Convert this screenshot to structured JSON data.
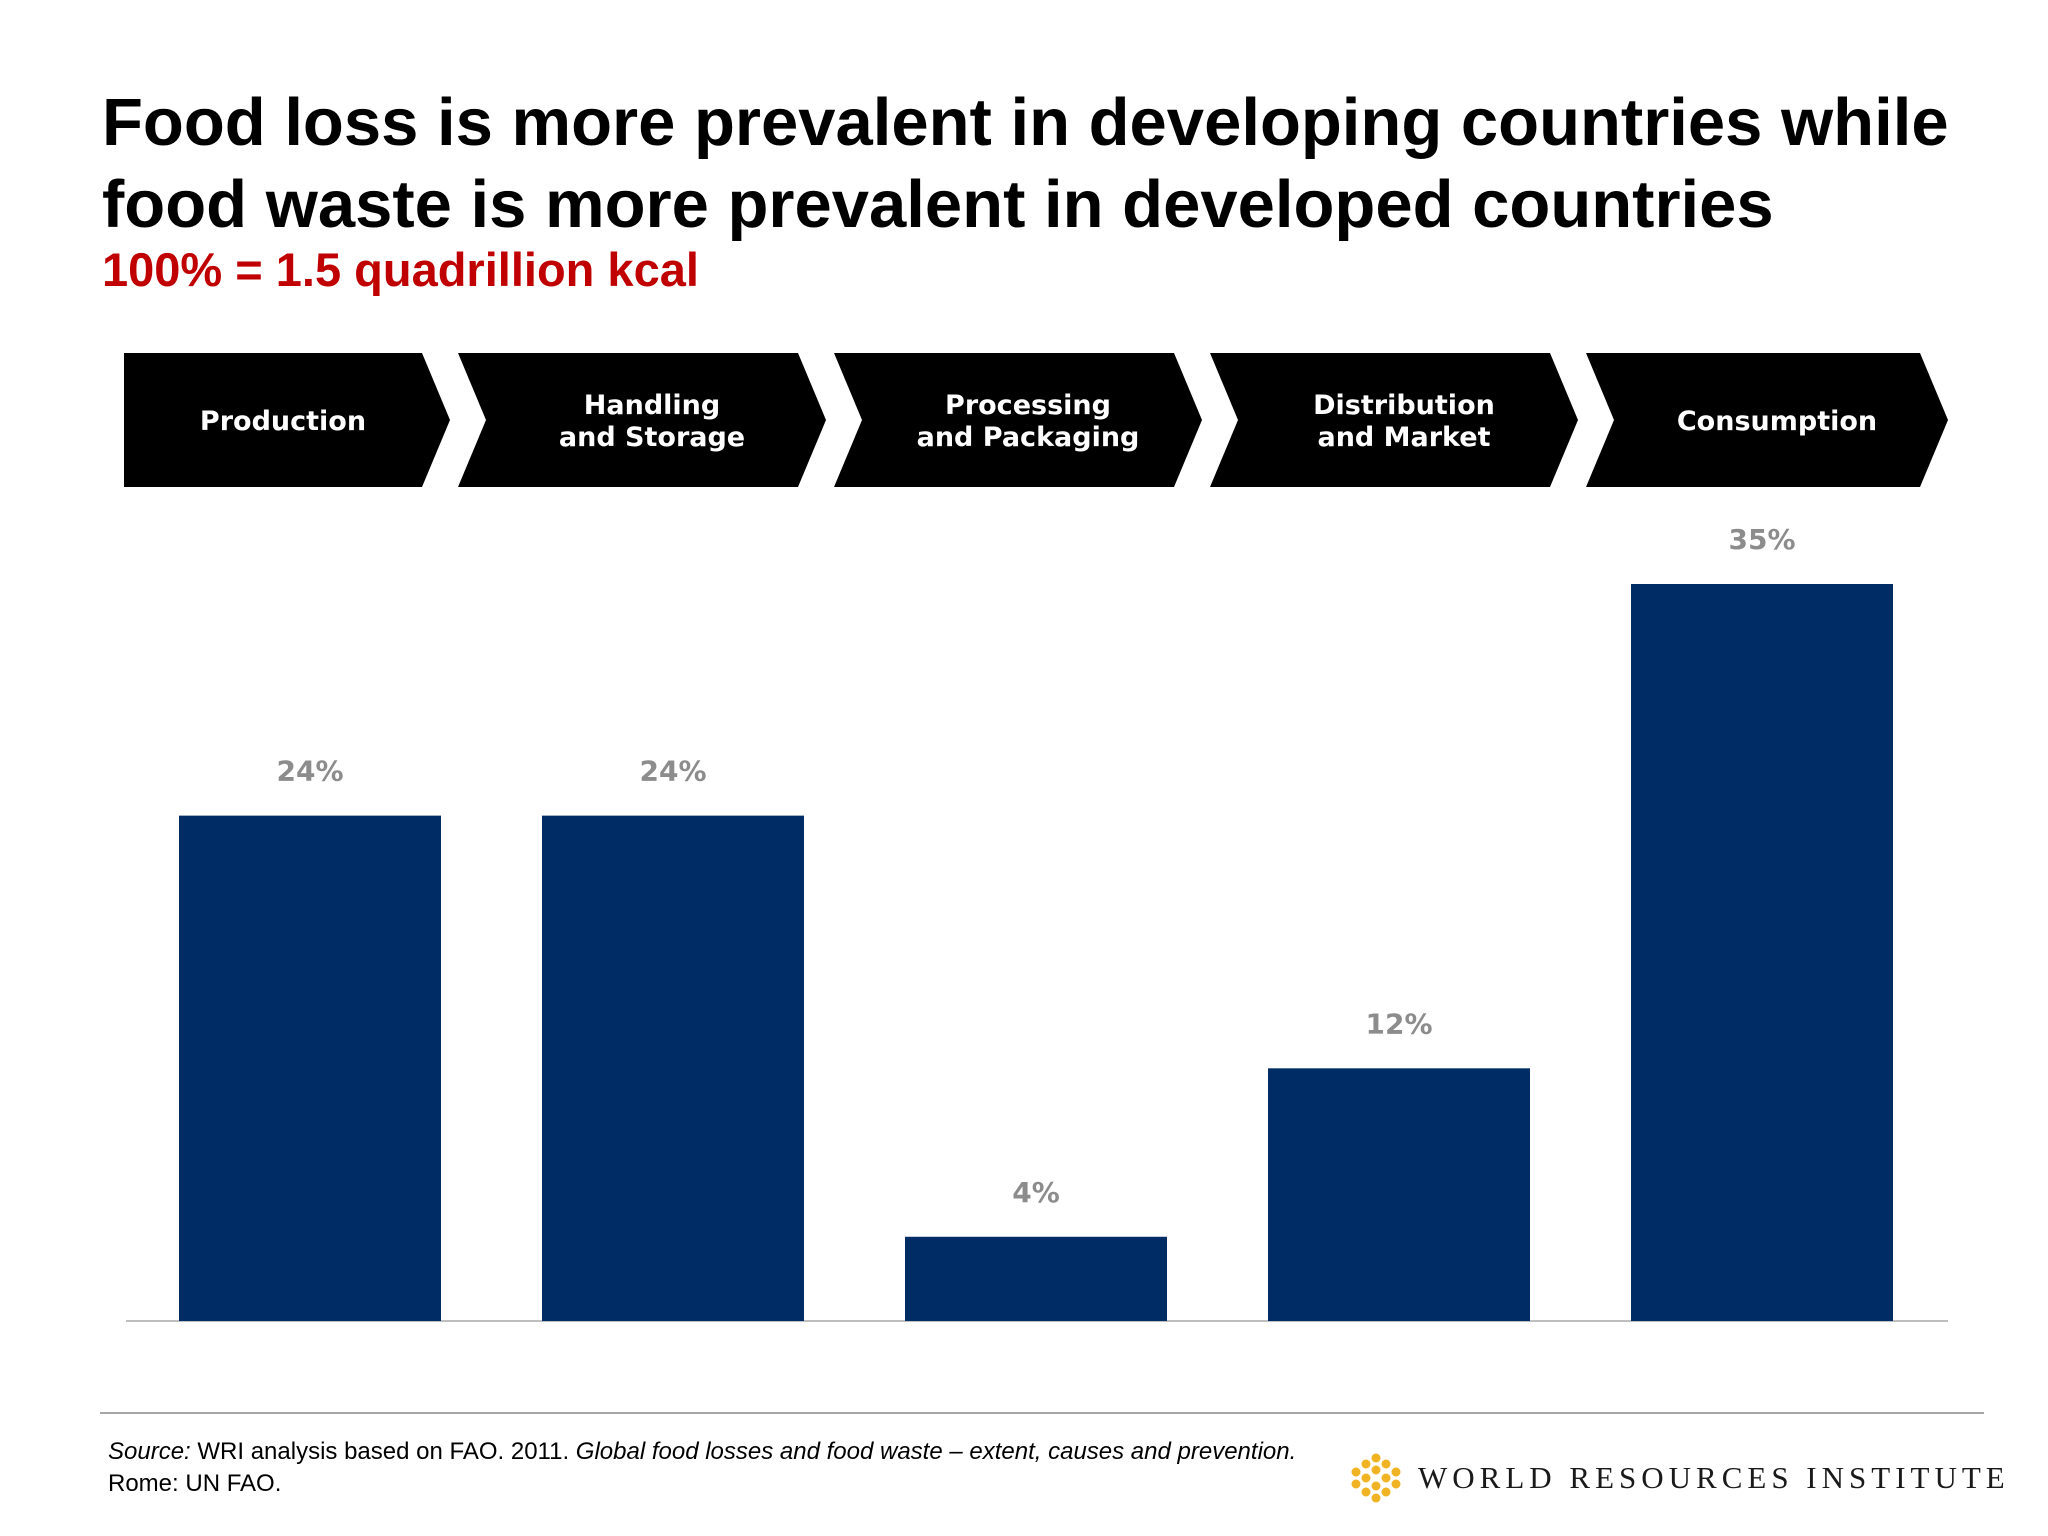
{
  "title_line1": "Food loss is more prevalent in developing countries while",
  "title_line2": "food waste is more prevalent in developed countries",
  "subtitle": "100% = 1.5 quadrillion kcal",
  "colors": {
    "bar": "#002c66",
    "chevron": "#000000",
    "subtitle": "#c00000",
    "label": "#8c8c8c",
    "logo_gold": "#f0b323"
  },
  "stages": [
    [
      "Production"
    ],
    [
      "Handling",
      "and Storage"
    ],
    [
      "Processing",
      "and Packaging"
    ],
    [
      "Distribution",
      "and Market"
    ],
    [
      "Consumption"
    ]
  ],
  "chart_data": {
    "type": "bar",
    "categories": [
      "Production",
      "Handling and Storage",
      "Processing and Packaging",
      "Distribution and Market",
      "Consumption"
    ],
    "values": [
      24,
      24,
      4,
      12,
      35
    ],
    "value_labels": [
      "24%",
      "24%",
      "4%",
      "12%",
      "35%"
    ],
    "ylim": [
      0,
      35
    ],
    "grid": false,
    "legend": "none"
  },
  "footer": {
    "source_label": "Source:",
    "source_text": " WRI analysis based on FAO. 2011. ",
    "source_title": "Global food losses and food waste – extent, causes and prevention.",
    "source_tail": " Rome: UN FAO.",
    "org_name": "WORLD RESOURCES INSTITUTE"
  }
}
